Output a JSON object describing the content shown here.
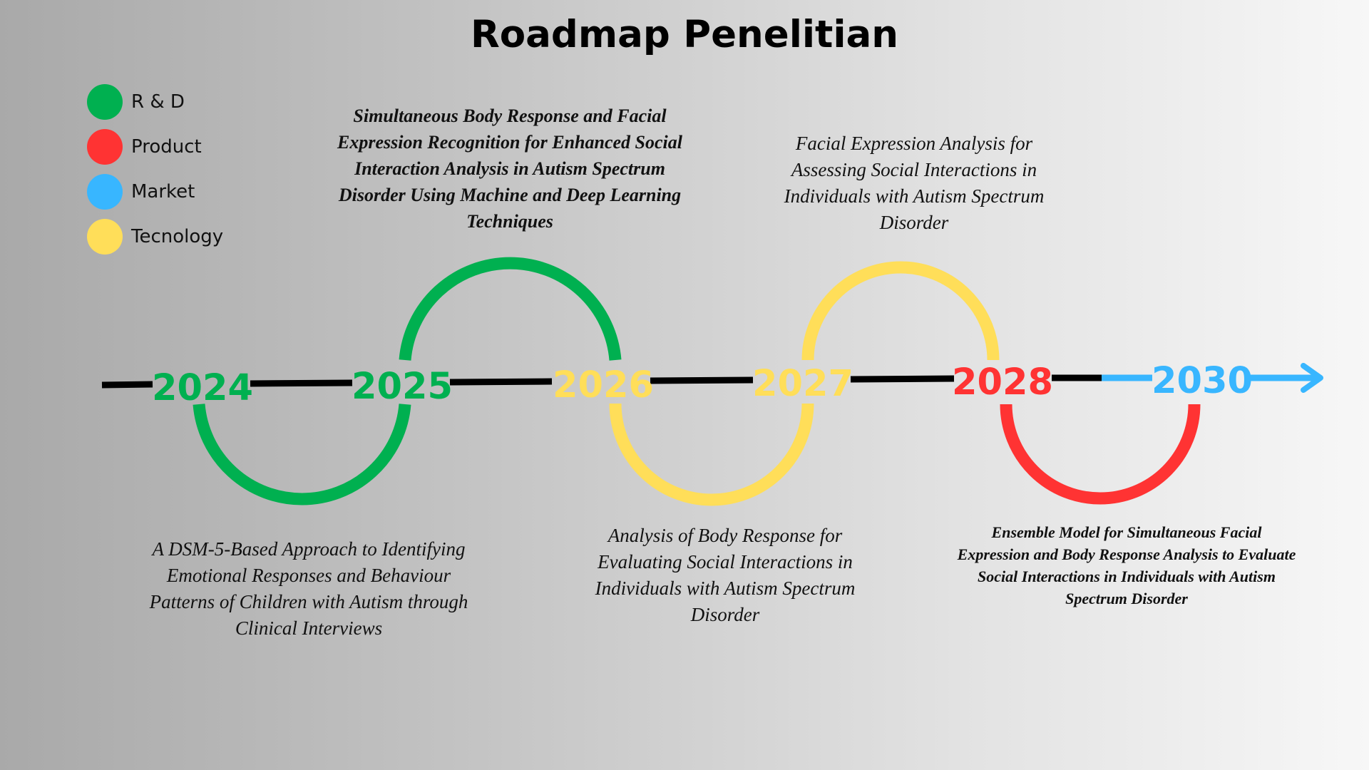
{
  "title": "Roadmap Penelitian",
  "legend": [
    {
      "label": "R & D",
      "color": "#00b050"
    },
    {
      "label": "Product",
      "color": "#ff3333"
    },
    {
      "label": "Market",
      "color": "#38b6ff"
    },
    {
      "label": "Tecnology",
      "color": "#ffde59"
    }
  ],
  "timeline": {
    "line_color": "#000000",
    "years": [
      {
        "label": "2024",
        "color": "#00b050"
      },
      {
        "label": "2025",
        "color": "#00b050"
      },
      {
        "label": "2026",
        "color": "#ffde59"
      },
      {
        "label": "2027",
        "color": "#ffde59"
      },
      {
        "label": "2028",
        "color": "#ff3333"
      },
      {
        "label": "2030",
        "color": "#38b6ff"
      }
    ],
    "arcs": [
      {
        "from": "2024",
        "to": "2025",
        "side": "below",
        "color": "#00b050"
      },
      {
        "from": "2025",
        "to": "2026",
        "side": "above",
        "color": "#00b050"
      },
      {
        "from": "2026",
        "to": "2027",
        "side": "below",
        "color": "#ffde59"
      },
      {
        "from": "2027",
        "to": "2028",
        "side": "above",
        "color": "#ffde59"
      },
      {
        "from": "2028",
        "to": "2030",
        "side": "below",
        "color": "#ff3333"
      }
    ],
    "arrow_color": "#38b6ff"
  },
  "descriptions": [
    {
      "id": "2025",
      "text": "Simultaneous Body Response and Facial Expression Recognition for Enhanced Social Interaction Analysis in Autism Spectrum Disorder Using Machine and Deep Learning Techniques"
    },
    {
      "id": "2027",
      "text": "Facial Expression Analysis for Assessing Social Interactions in Individuals with Autism Spectrum Disorder"
    },
    {
      "id": "2024",
      "text": "A DSM-5-Based Approach to Identifying Emotional Responses and Behaviour Patterns of Children with Autism through Clinical Interviews"
    },
    {
      "id": "2026",
      "text": "Analysis of Body Response for Evaluating Social Interactions in Individuals with Autism Spectrum Disorder"
    },
    {
      "id": "2028",
      "text": "Ensemble Model for Simultaneous Facial Expression and Body Response Analysis to Evaluate Social Interactions in Individuals with Autism Spectrum Disorder"
    }
  ]
}
